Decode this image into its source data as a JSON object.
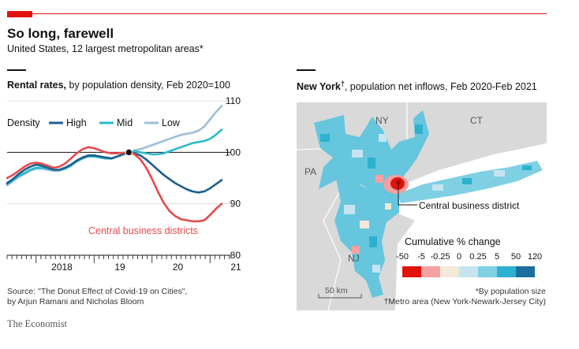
{
  "header": {
    "title": "So long, farewell",
    "subtitle": "United States, 12 largest metropolitan areas*"
  },
  "left_panel": {
    "heading_bold": "Rental rates,",
    "heading_rest": " by population density, Feb 2020=100"
  },
  "right_panel": {
    "heading_bold": "New York",
    "heading_dagger": "†",
    "heading_rest": ", population net inflows, Feb 2020-Feb 2021",
    "labels": {
      "ny": "NY",
      "ct": "CT",
      "pa": "PA",
      "nj": "NJ"
    },
    "cbd_label": "Central business district",
    "scale_label": "50 km",
    "legend_title": "Cumulative % change",
    "legend_ticks": [
      "-50",
      "-5",
      "-0.25",
      "0",
      "0.25",
      "5",
      "50",
      "120"
    ],
    "legend_colors": [
      "#e3120b",
      "#f6a0a0",
      "#f4e9d8",
      "#c5e4ef",
      "#7fd0e3",
      "#2eb1cf",
      "#1b6f9e"
    ]
  },
  "footer": {
    "source_line1": "Source: \"The Donut Effect of Covid-19 on Cities\",",
    "source_line2": "by Arjun Ramani and Nicholas Bloom",
    "note1": "*By population size",
    "note2": "†Metro area (New York-Newark-Jersey City)",
    "brand": "The Economist"
  },
  "colors": {
    "high": "#1b5e8e",
    "mid": "#2bb9cf",
    "low": "#9cbfd9",
    "cbd": "#e8494a",
    "accent": "#e3120b"
  },
  "chart_data": {
    "type": "line",
    "title": "Rental rates, by population density, Feb 2020=100",
    "ylim": [
      80,
      110
    ],
    "yticks": [
      "80",
      "90",
      "100",
      "110"
    ],
    "xlim": [
      2017.5,
      2021.35
    ],
    "xticks": [
      {
        "value": 2018,
        "label": "2018"
      },
      {
        "value": 2019,
        "label": "19"
      },
      {
        "value": 2020,
        "label": "20"
      },
      {
        "value": 2021,
        "label": "21"
      }
    ],
    "legend_title": "Density",
    "baseline": 100,
    "marker": {
      "x": 2019.6,
      "y": 100
    },
    "x": [
      2017.5,
      2017.6,
      2017.7,
      2017.8,
      2017.9,
      2018.0,
      2018.1,
      2018.2,
      2018.3,
      2018.4,
      2018.5,
      2018.6,
      2018.7,
      2018.8,
      2018.9,
      2019.0,
      2019.1,
      2019.2,
      2019.3,
      2019.4,
      2019.5,
      2019.6,
      2019.7,
      2019.8,
      2019.9,
      2020.0,
      2020.1,
      2020.2,
      2020.3,
      2020.4,
      2020.5,
      2020.6,
      2020.7,
      2020.8,
      2020.9,
      2021.0,
      2021.1,
      2021.2
    ],
    "series": [
      {
        "name": "High",
        "legend": true,
        "values": [
          94.0,
          94.8,
          95.8,
          96.6,
          97.2,
          97.6,
          97.4,
          97.0,
          96.6,
          96.6,
          97.0,
          97.6,
          98.4,
          99.0,
          99.4,
          99.4,
          99.2,
          99.0,
          98.8,
          99.2,
          99.6,
          100.0,
          99.8,
          99.4,
          98.6,
          97.6,
          96.6,
          95.6,
          94.8,
          94.0,
          93.4,
          92.8,
          92.4,
          92.2,
          92.4,
          93.0,
          93.8,
          94.6
        ]
      },
      {
        "name": "Mid",
        "legend": true,
        "values": [
          93.8,
          94.6,
          95.4,
          96.0,
          96.6,
          97.0,
          97.0,
          96.8,
          96.6,
          96.6,
          96.8,
          97.4,
          98.2,
          98.8,
          99.2,
          99.2,
          99.0,
          98.8,
          98.8,
          99.2,
          99.6,
          100.0,
          100.2,
          100.0,
          99.8,
          99.6,
          99.6,
          99.8,
          100.2,
          100.6,
          101.0,
          101.4,
          101.8,
          102.0,
          102.2,
          102.6,
          103.4,
          104.4
        ]
      },
      {
        "name": "Low",
        "legend": true,
        "values": [
          93.6,
          94.4,
          95.2,
          95.8,
          96.4,
          96.8,
          96.8,
          96.6,
          96.4,
          96.4,
          96.8,
          97.4,
          98.2,
          98.8,
          99.2,
          99.2,
          99.0,
          98.8,
          98.8,
          99.2,
          99.6,
          100.0,
          100.4,
          100.6,
          101.0,
          101.4,
          101.8,
          102.2,
          102.6,
          103.0,
          103.4,
          103.6,
          103.8,
          104.2,
          105.0,
          106.4,
          107.8,
          109.0
        ]
      },
      {
        "name": "Central business districts",
        "legend": false,
        "values": [
          95.0,
          95.6,
          96.4,
          97.2,
          97.8,
          98.0,
          97.8,
          97.4,
          97.0,
          97.2,
          97.8,
          98.8,
          99.8,
          100.6,
          101.0,
          100.8,
          100.4,
          100.0,
          99.8,
          99.8,
          99.9,
          100.0,
          99.6,
          98.6,
          97.0,
          94.8,
          92.4,
          90.2,
          88.6,
          87.6,
          87.0,
          86.8,
          86.6,
          86.6,
          86.8,
          87.8,
          89.0,
          90.0
        ]
      }
    ],
    "annotation": "Central business districts"
  }
}
